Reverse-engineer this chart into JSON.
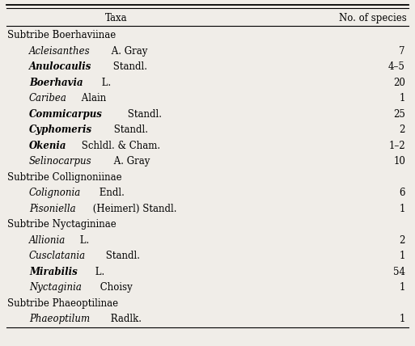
{
  "rows": [
    {
      "indent": 0,
      "genus_italic": "",
      "genus_bold": false,
      "author": "Subtribe Boerhaviinae",
      "species": ""
    },
    {
      "indent": 1,
      "genus_italic": "Acleisanthes",
      "genus_bold": false,
      "author": " A. Gray",
      "species": "7"
    },
    {
      "indent": 1,
      "genus_italic": "Anulocaulis",
      "genus_bold": true,
      "author": " Standl.",
      "species": "4–5"
    },
    {
      "indent": 1,
      "genus_italic": "Boerhavia",
      "genus_bold": true,
      "author": " L.",
      "species": "20"
    },
    {
      "indent": 1,
      "genus_italic": "Caribea",
      "genus_bold": false,
      "author": " Alain",
      "species": "1"
    },
    {
      "indent": 1,
      "genus_italic": "Commicarpus",
      "genus_bold": true,
      "author": " Standl.",
      "species": "25"
    },
    {
      "indent": 1,
      "genus_italic": "Cyphomeris",
      "genus_bold": true,
      "author": " Standl.",
      "species": "2"
    },
    {
      "indent": 1,
      "genus_italic": "Okenia",
      "genus_bold": true,
      "author": " Schldl. & Cham.",
      "species": "1–2"
    },
    {
      "indent": 1,
      "genus_italic": "Selinocarpus",
      "genus_bold": false,
      "author": " A. Gray",
      "species": "10"
    },
    {
      "indent": 0,
      "genus_italic": "",
      "genus_bold": false,
      "author": "Subtribe Collignoniinae",
      "species": ""
    },
    {
      "indent": 1,
      "genus_italic": "Colignonia",
      "genus_bold": false,
      "author": " Endl.",
      "species": "6"
    },
    {
      "indent": 1,
      "genus_italic": "Pisoniella",
      "genus_bold": false,
      "author": " (Heimerl) Standl.",
      "species": "1"
    },
    {
      "indent": 0,
      "genus_italic": "",
      "genus_bold": false,
      "author": "Subtribe Nyctagininae",
      "species": ""
    },
    {
      "indent": 1,
      "genus_italic": "Allionia",
      "genus_bold": false,
      "author": " L.",
      "species": "2"
    },
    {
      "indent": 1,
      "genus_italic": "Cusclatania",
      "genus_bold": false,
      "author": " Standl.",
      "species": "1"
    },
    {
      "indent": 1,
      "genus_italic": "Mirabilis",
      "genus_bold": true,
      "author": " L.",
      "species": "54"
    },
    {
      "indent": 1,
      "genus_italic": "Nyctaginia",
      "genus_bold": false,
      "author": " Choisy",
      "species": "1"
    },
    {
      "indent": 0,
      "genus_italic": "",
      "genus_bold": false,
      "author": "Subtribe Phaeoptilinae",
      "species": ""
    },
    {
      "indent": 1,
      "genus_italic": "Phaeoptilum",
      "genus_bold": false,
      "author": " Radlk.",
      "species": "1"
    }
  ],
  "col1_header": "Taxa",
  "col2_header": "No. of species",
  "bg_color": "#f0ede8",
  "font_size": 8.5,
  "header_font_size": 8.5
}
